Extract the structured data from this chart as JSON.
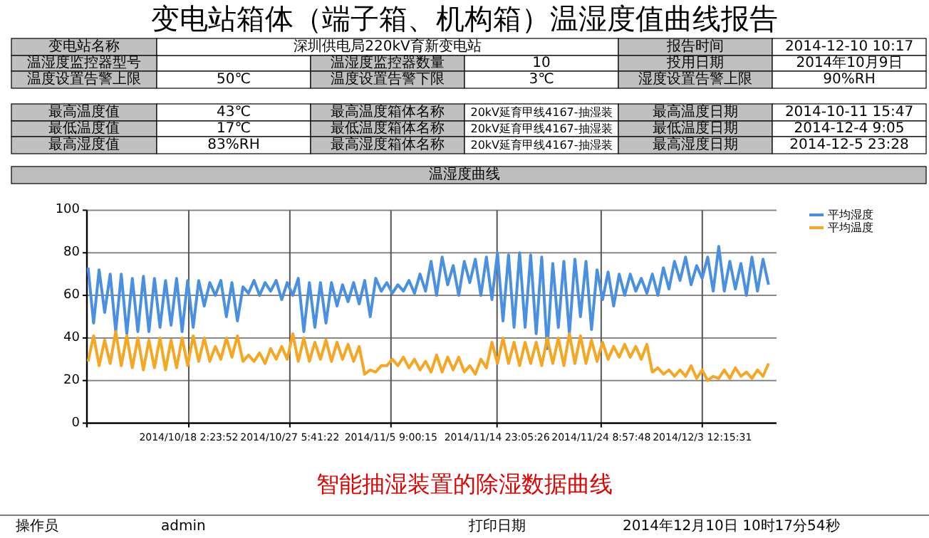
{
  "chart_data": {
    "type": "line",
    "title": "变电站箱体（端子箱、机构箱）温湿度值曲线报告",
    "subtitle": "温湿度曲线",
    "annotations": [
      "变电站名称",
      "深圳供电局220kV育新变电站",
      "报告时间",
      "2014-12-10 10:17",
      "温湿度监控器型号",
      "温湿度监控器数量",
      "10",
      "投用日期",
      "2014年10月9日",
      "温度设置告警上限",
      "50℃",
      "温度设置告警下限",
      "3℃",
      "湿度设置告警上限",
      "90%RH",
      "最高温度值",
      "43℃",
      "最高温度箱体名称",
      "20kV延育甲线4167-抽湿装",
      "最高温度日期",
      "2014-10-11 15:47",
      "最低温度值",
      "17℃",
      "最低温度箱体名称",
      "20kV延育甲线4167-抽湿装",
      "最低温度日期",
      "2014-12-4 9:05",
      "最高湿度值",
      "83%RH",
      "最高湿度箱体名称",
      "20kV延育甲线4167-抽湿装",
      "最高湿度日期",
      "2014-12-5 23:28",
      "智能抽湿装置的除湿数据曲线",
      "操作员",
      "admin",
      "打印日期",
      "2014年12月10日 10时17分54秒"
    ],
    "x": [
      "2014-10-09T00:00",
      "2014-10-09T12:00",
      "2014-10-10T00:00",
      "2014-10-10T12:00",
      "2014-10-11T00:00",
      "2014-10-11T12:00",
      "2014-10-12T00:00",
      "2014-10-12T12:00",
      "2014-10-13T00:00",
      "2014-10-13T12:00",
      "2014-10-14T00:00",
      "2014-10-14T12:00",
      "2014-10-15T00:00",
      "2014-10-15T12:00",
      "2014-10-16T00:00",
      "2014-10-16T12:00",
      "2014-10-17T00:00",
      "2014-10-17T12:00",
      "2014-10-18T00:00",
      "2014-10-18T12:00",
      "2014-10-19T00:00",
      "2014-10-19T12:00",
      "2014-10-20T00:00",
      "2014-10-20T12:00",
      "2014-10-21T00:00",
      "2014-10-21T12:00",
      "2014-10-22T00:00",
      "2014-10-22T12:00",
      "2014-10-23T00:00",
      "2014-10-23T12:00",
      "2014-10-24T00:00",
      "2014-10-24T12:00",
      "2014-10-25T00:00",
      "2014-10-25T12:00",
      "2014-10-26T00:00",
      "2014-10-26T12:00",
      "2014-10-27T00:00",
      "2014-10-27T12:00",
      "2014-10-28T00:00",
      "2014-10-28T12:00",
      "2014-10-29T00:00",
      "2014-10-29T12:00",
      "2014-10-30T00:00",
      "2014-10-30T12:00",
      "2014-10-31T00:00",
      "2014-10-31T12:00",
      "2014-11-01T00:00",
      "2014-11-01T12:00",
      "2014-11-02T00:00",
      "2014-11-02T12:00",
      "2014-11-03T00:00",
      "2014-11-03T12:00",
      "2014-11-04T00:00",
      "2014-11-04T12:00",
      "2014-11-05T00:00",
      "2014-11-05T12:00",
      "2014-11-06T00:00",
      "2014-11-06T12:00",
      "2014-11-07T00:00",
      "2014-11-07T12:00",
      "2014-11-08T00:00",
      "2014-11-08T12:00",
      "2014-11-09T00:00",
      "2014-11-09T12:00",
      "2014-11-10T00:00",
      "2014-11-10T12:00",
      "2014-11-11T00:00",
      "2014-11-11T12:00",
      "2014-11-12T00:00",
      "2014-11-12T12:00",
      "2014-11-13T00:00",
      "2014-11-13T12:00",
      "2014-11-14T00:00",
      "2014-11-14T12:00",
      "2014-11-15T00:00",
      "2014-11-15T12:00",
      "2014-11-16T00:00",
      "2014-11-16T12:00",
      "2014-11-17T00:00",
      "2014-11-17T12:00",
      "2014-11-18T00:00",
      "2014-11-18T12:00",
      "2014-11-19T00:00",
      "2014-11-19T12:00",
      "2014-11-20T00:00",
      "2014-11-20T12:00",
      "2014-11-21T00:00",
      "2014-11-21T12:00",
      "2014-11-22T00:00",
      "2014-11-22T12:00",
      "2014-11-23T00:00",
      "2014-11-23T12:00",
      "2014-11-24T00:00",
      "2014-11-24T12:00",
      "2014-11-25T00:00",
      "2014-11-25T12:00",
      "2014-11-26T00:00",
      "2014-11-26T12:00",
      "2014-11-27T00:00",
      "2014-11-27T12:00",
      "2014-11-28T00:00",
      "2014-11-28T12:00",
      "2014-11-29T00:00",
      "2014-11-29T12:00",
      "2014-11-30T00:00",
      "2014-11-30T12:00",
      "2014-12-01T00:00",
      "2014-12-01T12:00",
      "2014-12-02T00:00",
      "2014-12-02T12:00",
      "2014-12-03T00:00",
      "2014-12-03T12:00",
      "2014-12-04T00:00",
      "2014-12-04T12:00",
      "2014-12-05T00:00",
      "2014-12-05T12:00",
      "2014-12-06T00:00",
      "2014-12-06T12:00",
      "2014-12-07T00:00",
      "2014-12-07T12:00",
      "2014-12-08T00:00",
      "2014-12-08T12:00",
      "2014-12-09T00:00",
      "2014-12-09T12:00"
    ],
    "series": [
      {
        "name": "平均湿度",
        "color": "#4a90e2",
        "values": [
          73,
          47,
          72,
          52,
          70,
          43,
          70,
          42,
          68,
          43,
          69,
          43,
          68,
          45,
          67,
          46,
          68,
          43,
          67,
          45,
          67,
          55,
          66,
          60,
          67,
          50,
          66,
          48,
          64,
          61,
          67,
          60,
          66,
          62,
          67,
          58,
          66,
          60,
          68,
          43,
          66,
          45,
          66,
          47,
          66,
          55,
          65,
          57,
          66,
          56,
          67,
          50,
          68,
          62,
          66,
          61,
          65,
          62,
          67,
          61,
          70,
          62,
          76,
          60,
          78,
          65,
          74,
          60,
          76,
          66,
          77,
          60,
          78,
          58,
          80,
          48,
          79,
          45,
          80,
          45,
          79,
          42,
          78,
          35,
          75,
          45,
          76,
          42,
          77,
          50,
          76,
          44,
          72,
          58,
          71,
          55,
          70,
          60,
          70,
          62,
          68,
          61,
          70,
          60,
          73,
          63,
          76,
          67,
          78,
          65,
          74,
          68,
          78,
          62,
          83,
          62,
          76,
          63,
          75,
          60,
          78,
          62,
          77,
          65
        ]
      },
      {
        "name": "平均温度",
        "color": "#f5a623",
        "values": [
          29,
          41,
          27,
          39,
          28,
          43,
          27,
          41,
          26,
          40,
          25,
          39,
          26,
          40,
          25,
          39,
          26,
          40,
          27,
          41,
          29,
          40,
          29,
          36,
          30,
          40,
          31,
          41,
          29,
          32,
          29,
          33,
          28,
          35,
          30,
          36,
          30,
          42,
          29,
          40,
          29,
          38,
          30,
          39,
          29,
          38,
          30,
          37,
          29,
          36,
          23,
          25,
          24,
          27,
          27,
          30,
          27,
          31,
          26,
          30,
          25,
          29,
          24,
          32,
          24,
          31,
          25,
          31,
          24,
          27,
          23,
          30,
          26,
          38,
          28,
          40,
          28,
          38,
          27,
          38,
          28,
          38,
          27,
          40,
          28,
          40,
          27,
          42,
          28,
          41,
          28,
          39,
          29,
          38,
          30,
          36,
          31,
          37,
          31,
          36,
          30,
          37,
          24,
          26,
          23,
          25,
          22,
          25,
          22,
          27,
          21,
          25,
          20,
          22,
          21,
          25,
          21,
          26,
          22,
          24,
          21,
          25,
          22,
          28
        ]
      }
    ],
    "xlim": [
      "2014-10-08T21:30",
      "2014-12-10T05:20"
    ],
    "xticks": [
      {
        "value": "2014-10-18T02:23:52",
        "label": "2014/10/18 2:23:52"
      },
      {
        "value": "2014-10-27T05:41:22",
        "label": "2014/10/27 5:41:22"
      },
      {
        "value": "2014-11-05T09:00:15",
        "label": "2014/11/5 9:00:15"
      },
      {
        "value": "2014-11-14T23:05:26",
        "label": "2014/11/14 23:05:26"
      },
      {
        "value": "2014-11-24T08:57:48",
        "label": "2014/11/24 8:57:48"
      },
      {
        "value": "2014-12-03T12:15:31",
        "label": "2014/12/3 12:15:31"
      }
    ],
    "ylim": [
      0,
      100
    ],
    "yticks": [
      0,
      20,
      40,
      60,
      80,
      100
    ],
    "grid": true,
    "legend": "top right"
  }
}
